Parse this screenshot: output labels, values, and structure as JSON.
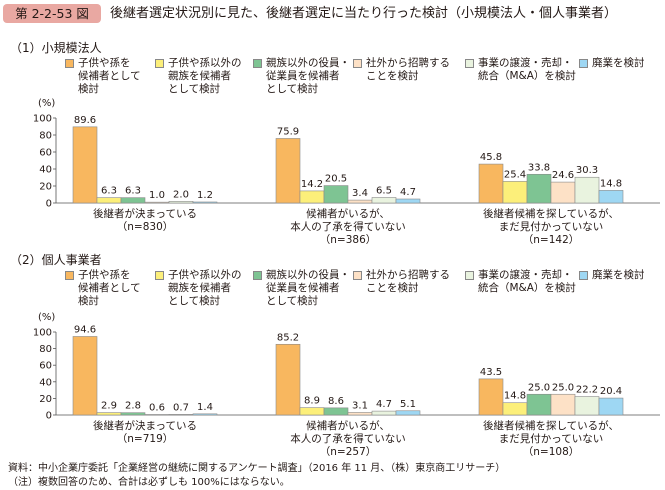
{
  "figure": {
    "number": "第 2-2-53 図",
    "title": "後継者選定状況別に見た、後継者選定に当たり行った検討（小規模法人・個人事業者）"
  },
  "legend": [
    {
      "label": "子供や孫を\n候補者として\n検討",
      "color": "#f8b75f"
    },
    {
      "label": "子供や孫以外の\n親族を候補者\nとして検討",
      "color": "#fcef7a"
    },
    {
      "label": "親族以外の役員・\n従業員を候補者\nとして検討",
      "color": "#7ec493"
    },
    {
      "label": "社外から招聘する\nことを検討",
      "color": "#fde1c6"
    },
    {
      "label": "事業の譲渡・売却・\n統合（M&A）を検討",
      "color": "#e9f3df"
    },
    {
      "label": "廃業を検討",
      "color": "#9ed7f3"
    }
  ],
  "footer": {
    "source": "資料：中小企業庁委託「企業経営の継続に関するアンケート調査」（2016 年 11 月、（株）東京商工リサーチ）",
    "note": "（注）複数回答のため、合計は必ずしも 100%にはならない。"
  },
  "chart_data": [
    {
      "type": "bar",
      "title": "（1）小規模法人",
      "ylabel": "(%)",
      "ylim": [
        0,
        100
      ],
      "yticks": [
        "0",
        "20",
        "40",
        "60",
        "80",
        "100"
      ],
      "categories": [
        {
          "label": "後継者が決まっている",
          "n": "（n=830）"
        },
        {
          "label": "候補者がいるが、\n本人の了承を得ていない",
          "n": "（n=386）"
        },
        {
          "label": "後継者候補を探しているが、\nまだ見付かっていない",
          "n": "（n=142）"
        }
      ],
      "series": [
        {
          "values": [
            89.6,
            75.9,
            45.8
          ],
          "labels": [
            "89.6",
            "75.9",
            "45.8"
          ]
        },
        {
          "values": [
            6.3,
            14.2,
            25.4
          ],
          "labels": [
            "6.3",
            "14.2",
            "25.4"
          ]
        },
        {
          "values": [
            6.3,
            20.5,
            33.8
          ],
          "labels": [
            "6.3",
            "20.5",
            "33.8"
          ]
        },
        {
          "values": [
            1.0,
            3.4,
            24.6
          ],
          "labels": [
            "1.0",
            "3.4",
            "24.6"
          ]
        },
        {
          "values": [
            2.0,
            6.5,
            30.3
          ],
          "labels": [
            "2.0",
            "6.5",
            "30.3"
          ]
        },
        {
          "values": [
            1.2,
            4.7,
            14.8
          ],
          "labels": [
            "1.2",
            "4.7",
            "14.8"
          ]
        }
      ]
    },
    {
      "type": "bar",
      "title": "（2）個人事業者",
      "ylabel": "(%)",
      "ylim": [
        0,
        100
      ],
      "yticks": [
        "0",
        "20",
        "40",
        "60",
        "80",
        "100"
      ],
      "categories": [
        {
          "label": "後継者が決まっている",
          "n": "（n=719）"
        },
        {
          "label": "候補者がいるが、\n本人の了承を得ていない",
          "n": "（n=257）"
        },
        {
          "label": "後継者候補を探しているが、\nまだ見付かっていない",
          "n": "（n=108）"
        }
      ],
      "series": [
        {
          "values": [
            94.6,
            85.2,
            43.5
          ],
          "labels": [
            "94.6",
            "85.2",
            "43.5"
          ]
        },
        {
          "values": [
            2.9,
            8.9,
            14.8
          ],
          "labels": [
            "2.9",
            "8.9",
            "14.8"
          ]
        },
        {
          "values": [
            2.8,
            8.6,
            25.0
          ],
          "labels": [
            "2.8",
            "8.6",
            "25.0"
          ]
        },
        {
          "values": [
            0.6,
            3.1,
            25.0
          ],
          "labels": [
            "0.6",
            "3.1",
            "25.0"
          ]
        },
        {
          "values": [
            0.7,
            4.7,
            22.2
          ],
          "labels": [
            "0.7",
            "4.7",
            "22.2"
          ]
        },
        {
          "values": [
            1.4,
            5.1,
            20.4
          ],
          "labels": [
            "1.4",
            "5.1",
            "20.4"
          ]
        }
      ]
    }
  ]
}
